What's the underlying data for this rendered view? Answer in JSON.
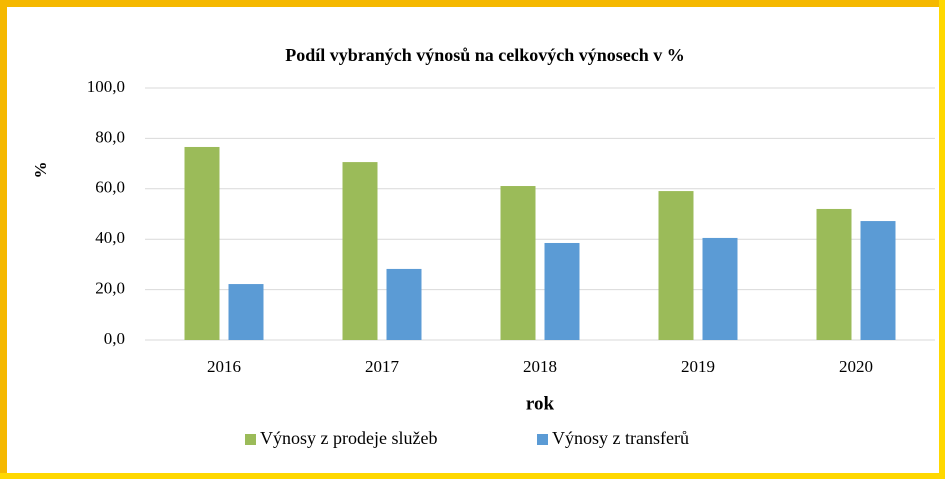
{
  "chart_data": {
    "type": "bar",
    "title": "Podíl vybraných výnosů na celkových výnosech v %",
    "y_label": "%",
    "x_label": "rok",
    "categories": [
      "2016",
      "2017",
      "2018",
      "2019",
      "2020"
    ],
    "series": [
      {
        "name": "Výnosy z prodeje služeb",
        "color": "#9bbb59",
        "values": [
          76.6,
          70.6,
          61.1,
          59.1,
          52.0
        ]
      },
      {
        "name": "Výnosy z transferů",
        "color": "#5b9bd5",
        "values": [
          22.2,
          28.2,
          38.5,
          40.5,
          47.2
        ]
      }
    ],
    "ylim": [
      0,
      100
    ],
    "yticks": [
      {
        "value": 0,
        "label": "0,0"
      },
      {
        "value": 20,
        "label": "20,0"
      },
      {
        "value": 40,
        "label": "40,0"
      },
      {
        "value": 60,
        "label": "60,0"
      },
      {
        "value": 80,
        "label": "80,0"
      },
      {
        "value": 100,
        "label": "100,0"
      }
    ],
    "grid": true,
    "legend": "bottom"
  }
}
